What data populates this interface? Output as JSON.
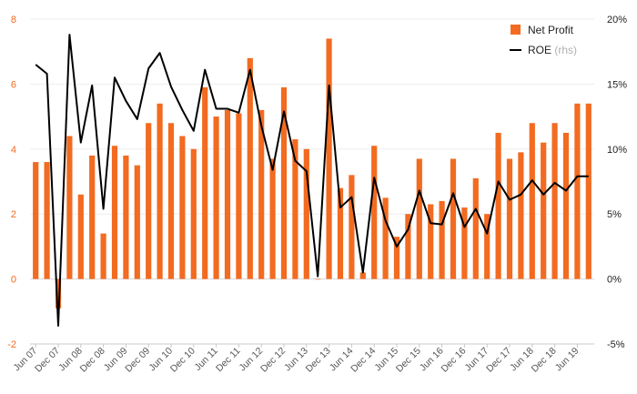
{
  "chart_data": {
    "type": "bar",
    "title": "",
    "xlabel": "",
    "ylabel": "",
    "ylim": [
      -2,
      8
    ],
    "y2lim": [
      -5,
      20
    ],
    "yticks": [
      "-2",
      "0",
      "2",
      "4",
      "6",
      "8"
    ],
    "y2ticks": [
      "-5%",
      "0%",
      "5%",
      "10%",
      "15%",
      "20%"
    ],
    "x_tick_labels": [
      "Jun 07",
      "Dec 07",
      "Jun 08",
      "Dec 08",
      "Jun 09",
      "Dec 09",
      "Jun 10",
      "Dec 10",
      "Jun 11",
      "Dec 11",
      "Jun 12",
      "Dec 12",
      "Jun 13",
      "Dec 13",
      "Jun 14",
      "Dec 14",
      "Jun 15",
      "Dec 15",
      "Jun 16",
      "Dec 16",
      "Jun 17",
      "Dec 17",
      "Jun 18",
      "Dec 18",
      "Jun 19"
    ],
    "legend_position": "top-right",
    "series": [
      {
        "name": "Net Profit",
        "type": "bar",
        "axis": "left",
        "color": "#f26b21",
        "values": [
          3.6,
          3.6,
          -0.9,
          4.4,
          2.6,
          3.8,
          1.4,
          4.1,
          3.8,
          3.5,
          4.8,
          5.4,
          4.8,
          4.4,
          4.0,
          5.9,
          5.0,
          5.2,
          5.1,
          6.8,
          5.2,
          3.7,
          5.9,
          4.3,
          4.0,
          0.0,
          7.4,
          2.8,
          3.2,
          0.2,
          4.1,
          2.5,
          1.3,
          2.0,
          3.7,
          2.3,
          2.4,
          3.7,
          2.2,
          3.1,
          2.0,
          4.5,
          3.7,
          3.9,
          4.8,
          4.2,
          4.8,
          4.5,
          5.4,
          5.4
        ]
      },
      {
        "name": "ROE",
        "suffix": "(rhs)",
        "type": "line",
        "axis": "right",
        "color": "#000000",
        "values": [
          16.5,
          15.8,
          -3.6,
          18.8,
          10.5,
          14.9,
          5.4,
          15.5,
          13.7,
          12.3,
          16.2,
          17.4,
          14.8,
          13.0,
          11.4,
          16.1,
          13.1,
          13.1,
          12.8,
          16.1,
          11.8,
          8.4,
          12.9,
          9.1,
          8.3,
          0.2,
          14.9,
          5.5,
          6.3,
          0.5,
          7.8,
          4.5,
          2.5,
          3.8,
          6.8,
          4.3,
          4.2,
          6.6,
          4.0,
          5.4,
          3.5,
          7.5,
          6.1,
          6.5,
          7.6,
          6.5,
          7.4,
          6.8,
          7.9,
          7.9
        ]
      }
    ]
  }
}
